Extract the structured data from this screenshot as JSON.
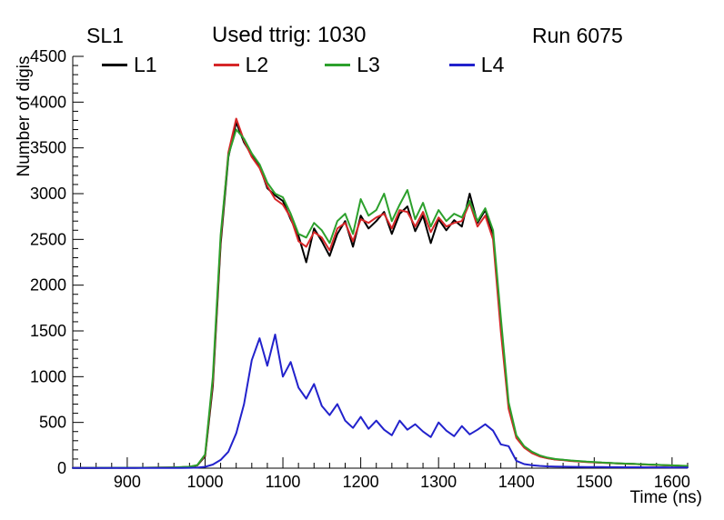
{
  "header": {
    "left": "SL1",
    "center": "Used ttrig: 1030",
    "right": "Run 6075"
  },
  "axes": {
    "x": {
      "title": "Time (ns)",
      "min": 830,
      "max": 1620,
      "major_ticks": [
        900,
        1000,
        1100,
        1200,
        1300,
        1400,
        1500,
        1600
      ],
      "major_step": 100,
      "minor_step": 20
    },
    "y": {
      "title": "Number of digis",
      "min": 0,
      "max": 4500,
      "major_ticks": [
        0,
        500,
        1000,
        1500,
        2000,
        2500,
        3000,
        3500,
        4000,
        4500
      ],
      "major_step": 500,
      "minor_step": 100
    }
  },
  "chart_data": {
    "type": "line",
    "title": "Used ttrig: 1030",
    "xlabel": "Time (ns)",
    "ylabel": "Number of digis",
    "xlim": [
      830,
      1620
    ],
    "ylim": [
      0,
      4500
    ],
    "grid": false,
    "legend_position": "top-inside",
    "x": [
      830,
      840,
      850,
      860,
      870,
      880,
      890,
      900,
      910,
      920,
      930,
      940,
      950,
      960,
      970,
      980,
      990,
      1000,
      1010,
      1020,
      1030,
      1040,
      1050,
      1060,
      1070,
      1080,
      1090,
      1100,
      1110,
      1120,
      1130,
      1140,
      1150,
      1160,
      1170,
      1180,
      1190,
      1200,
      1210,
      1220,
      1230,
      1240,
      1250,
      1260,
      1270,
      1280,
      1290,
      1300,
      1310,
      1320,
      1330,
      1340,
      1350,
      1360,
      1370,
      1380,
      1390,
      1400,
      1410,
      1420,
      1430,
      1440,
      1450,
      1460,
      1470,
      1480,
      1490,
      1500,
      1510,
      1520,
      1530,
      1540,
      1550,
      1560,
      1570,
      1580,
      1590,
      1600,
      1610,
      1620
    ],
    "series": [
      {
        "name": "L1",
        "color": "#000000",
        "values": [
          4,
          3,
          4,
          3,
          5,
          4,
          4,
          5,
          4,
          5,
          5,
          6,
          6,
          8,
          10,
          14,
          30,
          130,
          900,
          2450,
          3400,
          3780,
          3560,
          3420,
          3300,
          3060,
          2980,
          2920,
          2720,
          2540,
          2250,
          2620,
          2480,
          2320,
          2560,
          2700,
          2420,
          2760,
          2620,
          2700,
          2800,
          2560,
          2780,
          2860,
          2590,
          2760,
          2460,
          2720,
          2600,
          2710,
          2640,
          3000,
          2680,
          2820,
          2560,
          1550,
          680,
          340,
          230,
          170,
          130,
          110,
          95,
          90,
          80,
          75,
          70,
          65,
          60,
          58,
          52,
          50,
          48,
          42,
          40,
          36,
          32,
          30,
          26,
          24
        ]
      },
      {
        "name": "L2",
        "color": "#d62728",
        "values": [
          3,
          4,
          3,
          4,
          4,
          5,
          4,
          4,
          5,
          5,
          6,
          6,
          7,
          9,
          11,
          15,
          32,
          140,
          950,
          2500,
          3450,
          3820,
          3580,
          3400,
          3280,
          3080,
          2940,
          2880,
          2740,
          2480,
          2420,
          2580,
          2520,
          2380,
          2620,
          2680,
          2480,
          2720,
          2680,
          2740,
          2780,
          2620,
          2820,
          2800,
          2640,
          2800,
          2580,
          2740,
          2640,
          2680,
          2700,
          2900,
          2640,
          2760,
          2500,
          1500,
          650,
          330,
          225,
          165,
          128,
          108,
          94,
          88,
          78,
          74,
          68,
          64,
          60,
          56,
          52,
          48,
          46,
          42,
          38,
          35,
          32,
          29,
          26,
          23
        ]
      },
      {
        "name": "L3",
        "color": "#2ca02c",
        "values": [
          3,
          3,
          4,
          4,
          5,
          4,
          5,
          5,
          4,
          5,
          6,
          6,
          7,
          9,
          12,
          16,
          34,
          150,
          1000,
          2550,
          3420,
          3700,
          3600,
          3440,
          3320,
          3120,
          3000,
          2960,
          2780,
          2560,
          2520,
          2680,
          2600,
          2460,
          2700,
          2780,
          2560,
          2940,
          2760,
          2820,
          3000,
          2700,
          2880,
          3040,
          2720,
          2900,
          2640,
          2820,
          2700,
          2780,
          2740,
          2920,
          2700,
          2840,
          2600,
          1650,
          720,
          360,
          240,
          180,
          140,
          115,
          100,
          92,
          84,
          78,
          72,
          68,
          62,
          58,
          54,
          50,
          47,
          44,
          40,
          37,
          34,
          31,
          28,
          25
        ]
      },
      {
        "name": "L4",
        "color": "#2222cc",
        "values": [
          2,
          2,
          2,
          2,
          2,
          2,
          2,
          2,
          2,
          2,
          2,
          2,
          2,
          3,
          3,
          4,
          6,
          15,
          40,
          90,
          180,
          380,
          700,
          1180,
          1420,
          1120,
          1460,
          1000,
          1160,
          880,
          760,
          920,
          680,
          580,
          700,
          520,
          440,
          560,
          430,
          520,
          420,
          360,
          520,
          420,
          480,
          400,
          340,
          500,
          410,
          350,
          460,
          370,
          420,
          480,
          410,
          260,
          240,
          80,
          45,
          32,
          25,
          20,
          18,
          16,
          15,
          14,
          13,
          12,
          12,
          11,
          11,
          10,
          10,
          10,
          9,
          9,
          9,
          8,
          8,
          8
        ]
      }
    ]
  }
}
